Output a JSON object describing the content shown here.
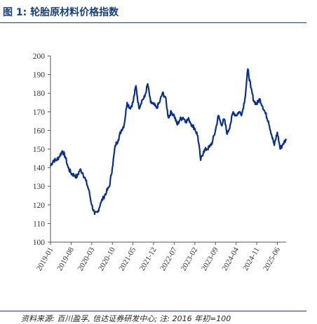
{
  "header": {
    "title": "图 1:  轮胎原材料价格指数"
  },
  "footer": {
    "source": "资料来源: 百川盈孚, 信达证券研发中心; 注: 2016 年初=100"
  },
  "colors": {
    "line": "#0b2f8a",
    "accent": "#1a3f7a"
  },
  "chart_data": {
    "type": "line",
    "title": "轮胎原材料价格指数",
    "xlabel": "",
    "ylabel": "",
    "ylim": [
      100,
      200
    ],
    "yticks": [
      "100",
      "110",
      "120",
      "130",
      "140",
      "150",
      "160",
      "170",
      "180",
      "190",
      "200"
    ],
    "xticks": [
      "2019-01",
      "2019-08",
      "2020-03",
      "2020-10",
      "2021-05",
      "2021-12",
      "2022-07",
      "2023-02",
      "2023-09",
      "2024-04",
      "2024-11",
      "2025-06"
    ],
    "grid": false,
    "series": [
      {
        "values": [
          [
            "2019-01",
            141
          ],
          [
            "2019-02",
            144
          ],
          [
            "2019-03",
            144
          ],
          [
            "2019-04",
            146
          ],
          [
            "2019-05",
            149
          ],
          [
            "2019-06",
            146
          ],
          [
            "2019-07",
            140
          ],
          [
            "2019-08",
            137
          ],
          [
            "2019-09",
            136
          ],
          [
            "2019-10",
            135
          ],
          [
            "2019-11",
            139
          ],
          [
            "2019-12",
            137
          ],
          [
            "2020-01",
            133
          ],
          [
            "2020-02",
            128
          ],
          [
            "2020-03",
            120
          ],
          [
            "2020-04",
            115
          ],
          [
            "2020-05",
            116
          ],
          [
            "2020-06",
            121
          ],
          [
            "2020-07",
            124
          ],
          [
            "2020-08",
            127
          ],
          [
            "2020-09",
            130
          ],
          [
            "2020-10",
            140
          ],
          [
            "2020-11",
            152
          ],
          [
            "2020-12",
            155
          ],
          [
            "2021-01",
            160
          ],
          [
            "2021-02",
            163
          ],
          [
            "2021-03",
            175
          ],
          [
            "2021-04",
            172
          ],
          [
            "2021-05",
            175
          ],
          [
            "2021-06",
            184
          ],
          [
            "2021-07",
            172
          ],
          [
            "2021-08",
            176
          ],
          [
            "2021-09",
            178
          ],
          [
            "2021-10",
            185
          ],
          [
            "2021-11",
            175
          ],
          [
            "2021-12",
            174
          ],
          [
            "2022-01",
            172
          ],
          [
            "2022-02",
            175
          ],
          [
            "2022-03",
            180
          ],
          [
            "2022-04",
            178
          ],
          [
            "2022-05",
            167
          ],
          [
            "2022-06",
            170
          ],
          [
            "2022-07",
            168
          ],
          [
            "2022-08",
            163
          ],
          [
            "2022-09",
            166
          ],
          [
            "2022-10",
            167
          ],
          [
            "2022-11",
            165
          ],
          [
            "2022-12",
            166
          ],
          [
            "2023-01",
            163
          ],
          [
            "2023-02",
            161
          ],
          [
            "2023-03",
            157
          ],
          [
            "2023-04",
            144
          ],
          [
            "2023-05",
            149
          ],
          [
            "2023-06",
            150
          ],
          [
            "2023-07",
            151
          ],
          [
            "2023-08",
            154
          ],
          [
            "2023-09",
            160
          ],
          [
            "2023-10",
            168
          ],
          [
            "2023-11",
            163
          ],
          [
            "2023-12",
            166
          ],
          [
            "2024-01",
            158
          ],
          [
            "2024-02",
            163
          ],
          [
            "2024-03",
            170
          ],
          [
            "2024-04",
            168
          ],
          [
            "2024-05",
            170
          ],
          [
            "2024-06",
            169
          ],
          [
            "2024-07",
            177
          ],
          [
            "2024-08",
            193
          ],
          [
            "2024-09",
            183
          ],
          [
            "2024-10",
            176
          ],
          [
            "2024-11",
            174
          ],
          [
            "2024-12",
            177
          ],
          [
            "2025-01",
            173
          ],
          [
            "2025-02",
            169
          ],
          [
            "2025-03",
            165
          ],
          [
            "2025-04",
            158
          ],
          [
            "2025-05",
            152
          ],
          [
            "2025-06",
            159
          ],
          [
            "2025-07",
            150
          ],
          [
            "2025-08",
            153
          ],
          [
            "2025-09",
            155
          ]
        ]
      }
    ]
  }
}
